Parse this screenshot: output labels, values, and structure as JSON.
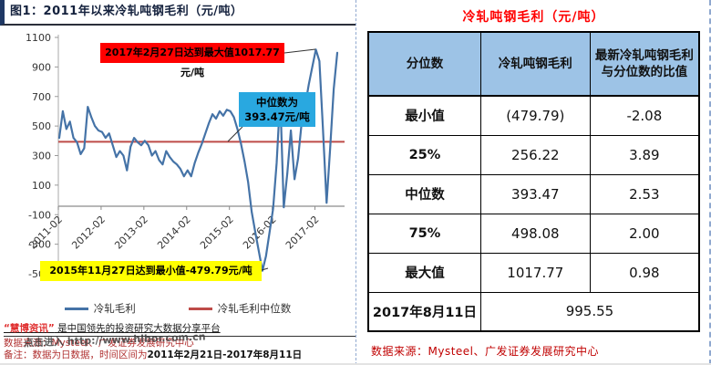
{
  "left": {
    "fig_title": "图1：2011年以来冷轧吨钢毛利（元/吨）",
    "annotations": {
      "max_label": "2017年2月27日达到最大值1017.77元/吨",
      "median_label_line1": "中位数为",
      "median_label_line2": "393.47元/吨",
      "min_label": "2015年11月27日达到最小值-479.79元/吨"
    },
    "legend": [
      {
        "label": "冷轧毛利",
        "color": "#4573a7"
      },
      {
        "label": "冷轧毛利中位数",
        "color": "#be4b48"
      }
    ],
    "footer": {
      "brand_quote": "“慧博资讯”",
      "brand_rest": " 是中国领先的投资研究大数据分享平台",
      "source": "数据来源：Mysteel、广发证券发展研究中心",
      "note_prefix": "备注：数据为日数据，时间区间为",
      "note_range": "2011年2月21日-2017年8月11日",
      "watermark": "点击进入 http://www.hibor.com.cn"
    }
  },
  "chart_data": {
    "type": "line",
    "title": "2011年以来冷轧吨钢毛利（元/吨）",
    "ylabel": "元/吨",
    "ylim": [
      -500,
      1100
    ],
    "y_ticks": [
      1100,
      900,
      700,
      500,
      300,
      100,
      -100,
      -300,
      -500
    ],
    "x_ticks": [
      "2011-02",
      "2012-02",
      "2013-02",
      "2014-02",
      "2015-02",
      "2016-02",
      "2017-02"
    ],
    "x_start": "2011-02",
    "x_step_months": 1,
    "grid": false,
    "legend_position": "bottom",
    "max_point": {
      "date": "2017-02-27",
      "value": 1017.77
    },
    "min_point": {
      "date": "2015-11-27",
      "value": -479.79
    },
    "latest_point": {
      "date": "2017-08-11",
      "value": 995.55
    },
    "series": [
      {
        "name": "冷轧毛利",
        "color": "#4573a7",
        "values": [
          420,
          600,
          480,
          530,
          420,
          390,
          310,
          350,
          630,
          560,
          500,
          470,
          460,
          420,
          450,
          370,
          290,
          330,
          300,
          200,
          360,
          420,
          390,
          370,
          400,
          370,
          300,
          330,
          270,
          240,
          330,
          290,
          260,
          240,
          210,
          160,
          200,
          160,
          250,
          320,
          380,
          450,
          520,
          580,
          550,
          600,
          570,
          610,
          600,
          560,
          480,
          380,
          260,
          120,
          -80,
          -220,
          -350,
          -479.79,
          -380,
          -220,
          -60,
          250,
          700,
          -50,
          180,
          470,
          140,
          280,
          520,
          640,
          780,
          900,
          1017.77,
          940,
          480,
          -20,
          350,
          750,
          995.55
        ]
      },
      {
        "name": "冷轧毛利中位数",
        "color": "#be4b48",
        "constant_value": 393.47
      }
    ]
  },
  "right": {
    "title": "冷轧吨钢毛利（元/吨）",
    "table": {
      "headers": [
        "分位数",
        "冷轧吨钢毛利",
        "最新冷轧吨钢毛利\n与分位数的比值"
      ],
      "rows": [
        {
          "label": "最小值",
          "profit": "(479.79)",
          "ratio": "-2.08"
        },
        {
          "label": "25%",
          "profit": "256.22",
          "ratio": "3.89"
        },
        {
          "label": "中位数",
          "profit": "393.47",
          "ratio": "2.53"
        },
        {
          "label": "75%",
          "profit": "498.08",
          "ratio": "2.00"
        },
        {
          "label": "最大值",
          "profit": "1017.77",
          "ratio": "0.98"
        }
      ],
      "last_row": {
        "label": "2017年8月11日",
        "value": "995.55"
      }
    },
    "source": "数据来源：Mysteel、广发证券发展研究中心"
  },
  "colors": {
    "series_blue": "#4573a7",
    "median_red": "#be4b48",
    "annotation_red_bg": "#ff0000",
    "annotation_blue_bg": "#29a8e0",
    "annotation_yellow_bg": "#ffff00",
    "table_header_bg": "#9dc3e6",
    "title_red": "#ff0000",
    "footer_red": "#c00000"
  }
}
